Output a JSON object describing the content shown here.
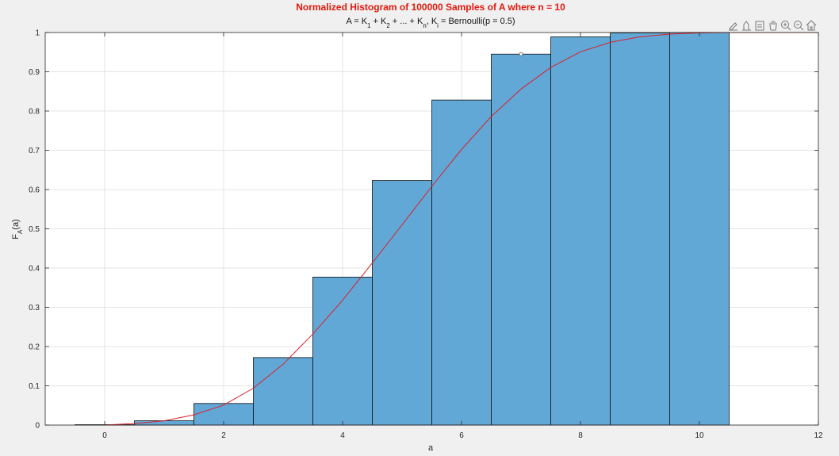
{
  "toolbar": {
    "icons": [
      "brush-icon",
      "data-tips-icon",
      "pan-icon",
      "zoom-in-icon",
      "zoom-out-icon",
      "home-icon"
    ],
    "color": "#777777"
  },
  "chart_data": {
    "type": "bar",
    "title": "Normalized Histogram of 100000 Samples of A where n = 10",
    "subtitle_parts": [
      {
        "t": "A = K"
      },
      {
        "t": "1",
        "sub": true
      },
      {
        "t": " + K"
      },
      {
        "t": "2",
        "sub": true
      },
      {
        "t": " + ... + K"
      },
      {
        "t": "n",
        "sub": true
      },
      {
        "t": ", K"
      },
      {
        "t": "i",
        "sub": true
      },
      {
        "t": " = Bernoulli(p = 0.5)"
      }
    ],
    "xlabel": "a",
    "ylabel_parts": [
      {
        "t": "F"
      },
      {
        "t": "A",
        "sub": true
      },
      {
        "t": "(a)"
      }
    ],
    "xlim": [
      -1,
      12
    ],
    "ylim": [
      0,
      1
    ],
    "xticks": [
      0,
      2,
      4,
      6,
      8,
      10,
      12
    ],
    "yticks": [
      0,
      0.1,
      0.2,
      0.3,
      0.4,
      0.5,
      0.6,
      0.7,
      0.8,
      0.9,
      1
    ],
    "grid": true,
    "bin_width": 1,
    "bins": [
      {
        "center": 0,
        "value": 0.001
      },
      {
        "center": 1,
        "value": 0.011
      },
      {
        "center": 2,
        "value": 0.055
      },
      {
        "center": 3,
        "value": 0.172
      },
      {
        "center": 4,
        "value": 0.377
      },
      {
        "center": 5,
        "value": 0.623
      },
      {
        "center": 6,
        "value": 0.828
      },
      {
        "center": 7,
        "value": 0.945
      },
      {
        "center": 8,
        "value": 0.989
      },
      {
        "center": 9,
        "value": 0.999
      },
      {
        "center": 10,
        "value": 1.0
      }
    ],
    "bar_color": "#62a8d6",
    "curve": {
      "color": "#d8202a",
      "x": [
        0,
        0.5,
        1,
        1.5,
        2,
        2.5,
        3,
        3.5,
        4,
        4.5,
        5,
        5.5,
        6,
        6.5,
        7,
        7.5,
        8,
        8.5,
        9,
        9.5,
        10,
        10.5,
        11,
        11.5,
        12
      ],
      "y": [
        0,
        0.004,
        0.011,
        0.026,
        0.051,
        0.094,
        0.155,
        0.232,
        0.318,
        0.413,
        0.51,
        0.608,
        0.702,
        0.786,
        0.856,
        0.911,
        0.951,
        0.975,
        0.989,
        0.996,
        0.999,
        1,
        1,
        1,
        1
      ]
    },
    "marker": {
      "x": 7,
      "y": 0.945
    }
  }
}
